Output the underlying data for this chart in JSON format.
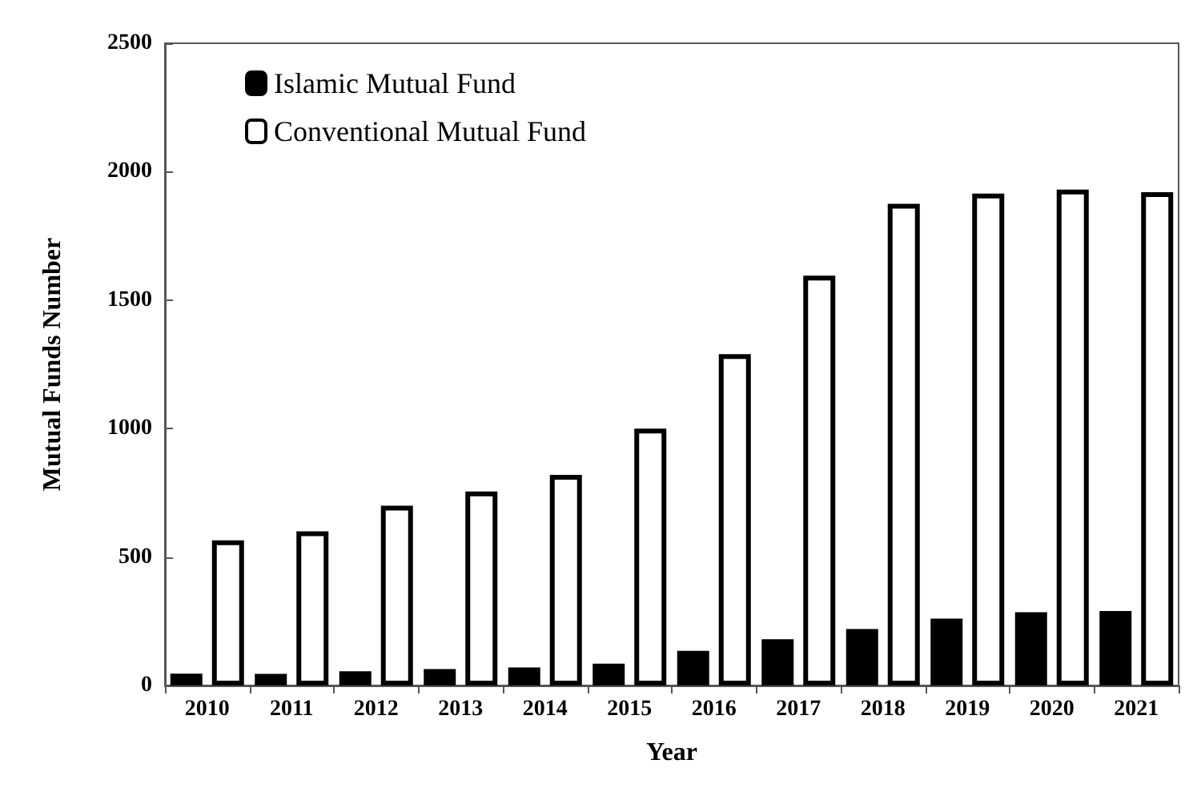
{
  "chart_data": {
    "type": "bar",
    "xlabel": "Year",
    "ylabel": "Mutual Funds Number",
    "categories": [
      "2010",
      "2011",
      "2012",
      "2013",
      "2014",
      "2015",
      "2016",
      "2017",
      "2018",
      "2019",
      "2020",
      "2021"
    ],
    "series": [
      {
        "name": "Islamic Mutual Fund",
        "color": "#000000",
        "values": [
          46,
          45,
          55,
          64,
          70,
          85,
          135,
          180,
          220,
          260,
          285,
          290
        ]
      },
      {
        "name": "Conventional Mutual Fund",
        "color": "#ffffff",
        "values": [
          565,
          600,
          700,
          755,
          820,
          1000,
          1290,
          1595,
          1875,
          1915,
          1930,
          1920
        ]
      }
    ],
    "ylim": [
      0,
      2500
    ],
    "yticks": [
      0,
      500,
      1000,
      1500,
      2000,
      2500
    ],
    "grid": false,
    "legend": "top left"
  }
}
